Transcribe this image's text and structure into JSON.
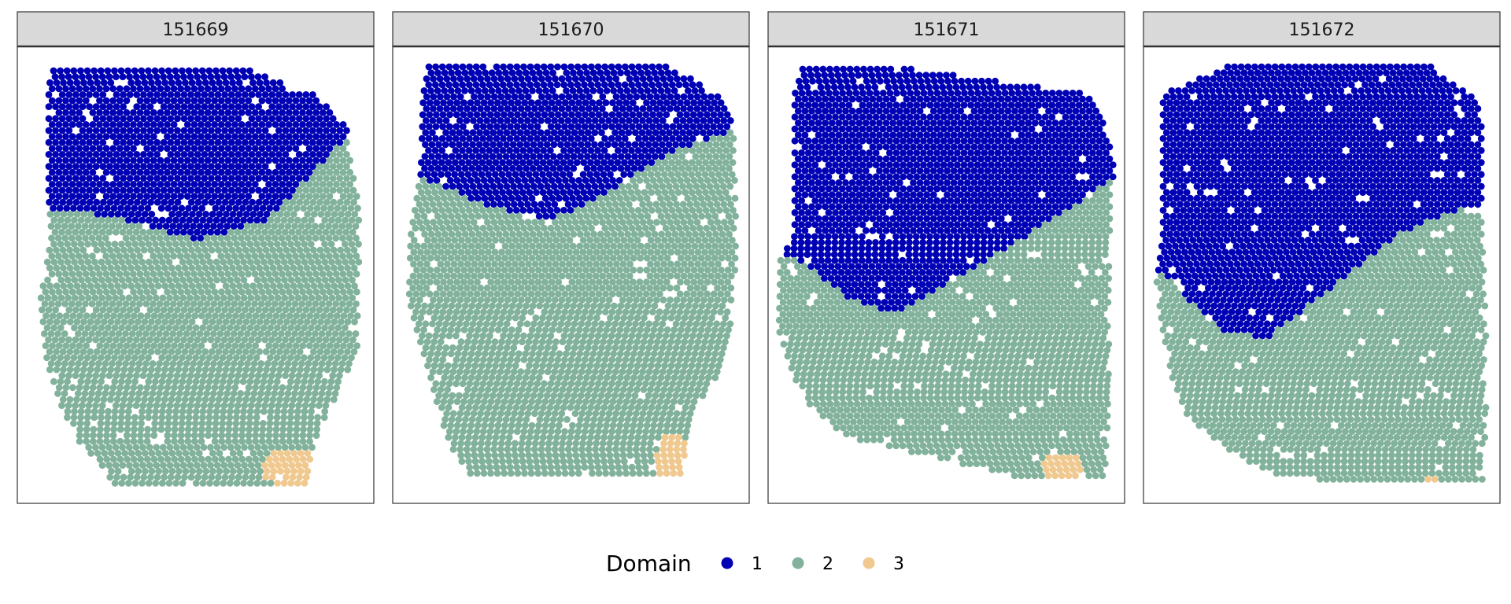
{
  "chart_data": {
    "type": "scatter",
    "panels": [
      {
        "title": "151669"
      },
      {
        "title": "151670"
      },
      {
        "title": "151671"
      },
      {
        "title": "151672"
      }
    ],
    "legend": {
      "title": "Domain",
      "placement": "bottom",
      "entries": [
        {
          "label": "1",
          "color": "#0000B4"
        },
        {
          "label": "2",
          "color": "#82B29C"
        },
        {
          "label": "3",
          "color": "#F0C990"
        }
      ]
    },
    "grid": false,
    "axes_visible": false
  }
}
